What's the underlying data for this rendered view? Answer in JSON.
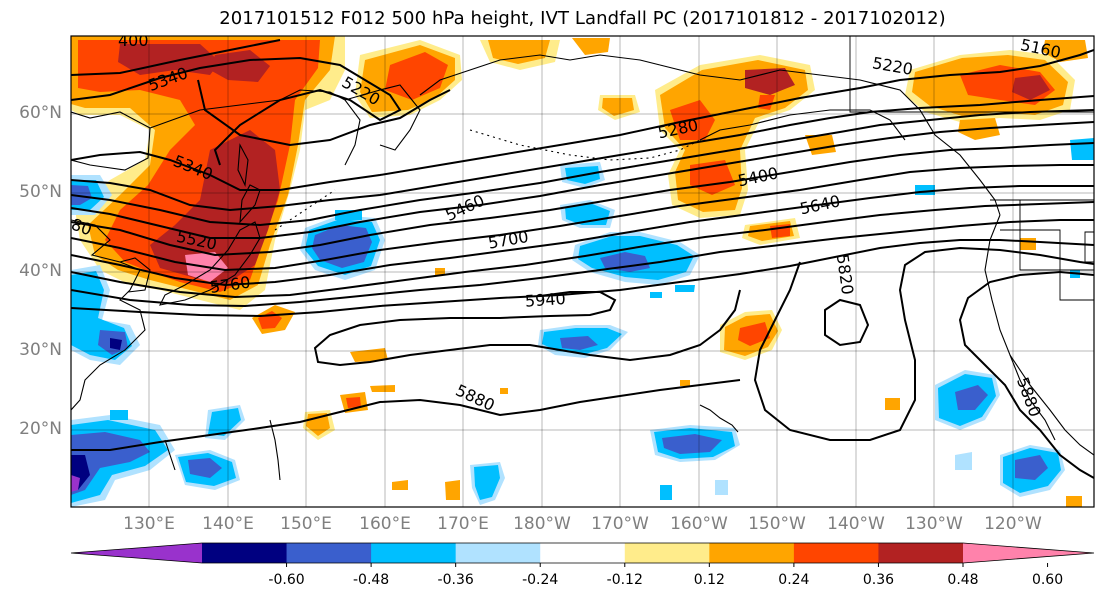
{
  "title": "2017101512 F012 500 hPa height, IVT Landfall PC (2017101812 - 2017102012)",
  "lat_labels": [
    "60°N",
    "50°N",
    "40°N",
    "30°N",
    "20°N"
  ],
  "lon_labels": [
    "130°E",
    "140°E",
    "150°E",
    "160°E",
    "170°E",
    "180°W",
    "170°W",
    "160°W",
    "150°W",
    "140°W",
    "130°W",
    "120°W"
  ],
  "colorbar": {
    "colors": [
      "#9932cc",
      "#000080",
      "#3a5fcd",
      "#00bfff",
      "#b0e2ff",
      "#ffffff",
      "#ffec8b",
      "#ffa500",
      "#ff4500",
      "#b22222",
      "#ff82ab"
    ],
    "ticks": [
      "-0.60",
      "-0.48",
      "-0.36",
      "-0.24",
      "-0.12",
      "0.12",
      "0.24",
      "0.36",
      "0.48",
      "0.60"
    ]
  },
  "contour_labels": [
    "5160",
    "5220",
    "5220",
    "5280",
    "5340",
    "5340",
    "5400",
    "5460",
    "5520",
    "5640",
    "5700",
    "5760",
    "5820",
    "5880",
    "5880",
    "5940",
    "400",
    "80"
  ]
}
